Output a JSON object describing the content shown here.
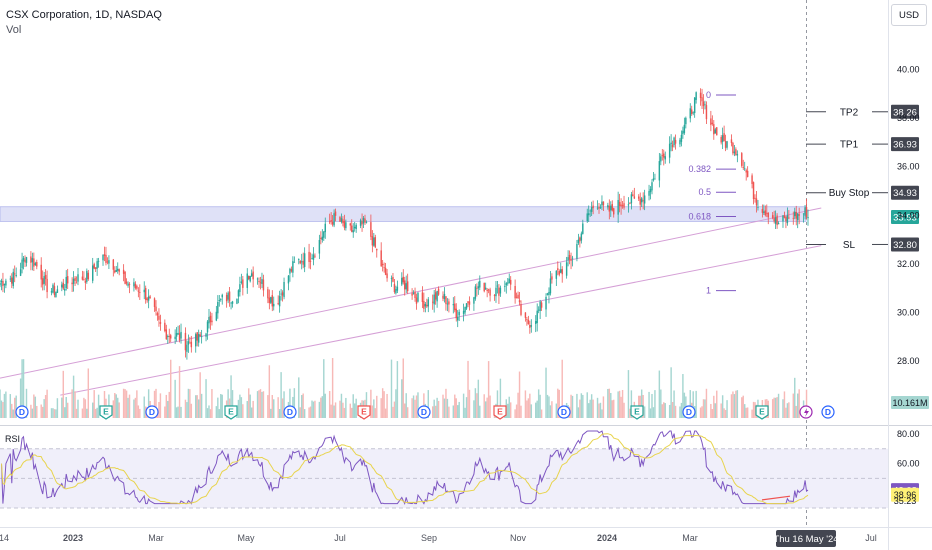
{
  "header": {
    "title": "CSX Corporation, 1D, NASDAQ",
    "volume_label": "Vol",
    "currency": "USD"
  },
  "colors": {
    "up": "#26a69a",
    "down": "#ef5350",
    "volUp": "#a5d6d1",
    "volDown": "#f7b9b7",
    "zone": "#c5c8f0",
    "fib": "#7e57c2",
    "rsi": "#7e57c2",
    "rsiMa": "#e8d44d",
    "trend": "#d59fd6"
  },
  "price_axis": {
    "ticks": [
      "40.00",
      "38.00",
      "36.00",
      "34.00",
      "32.00",
      "30.00",
      "28.00"
    ]
  },
  "price_levels": [
    {
      "label": "TP2",
      "value": "38.26"
    },
    {
      "label": "TP1",
      "value": "36.93"
    },
    {
      "label": "Buy Stop",
      "value": "34.93"
    },
    {
      "label": "SL",
      "value": "32.80"
    }
  ],
  "last_price": "33.93",
  "volume_badge": "10.161M",
  "fib_levels": [
    "0",
    "0.382",
    "0.5",
    "0.618",
    "1"
  ],
  "rsi": {
    "label": "RSI",
    "ticks": [
      "80.00",
      "60.00"
    ],
    "value": "42.08",
    "ma_value": "38.96",
    "min_value": "35.23"
  },
  "events": [
    {
      "kind": "D"
    },
    {
      "kind": "E"
    },
    {
      "kind": "D"
    },
    {
      "kind": "E"
    },
    {
      "kind": "D"
    },
    {
      "kind": "E"
    },
    {
      "kind": "D"
    },
    {
      "kind": "E"
    },
    {
      "kind": "D"
    },
    {
      "kind": "E"
    },
    {
      "kind": "D"
    },
    {
      "kind": "E"
    },
    {
      "kind": "flash"
    },
    {
      "kind": "D"
    }
  ],
  "x_axis": {
    "labels": [
      "14",
      "2023",
      "Mar",
      "May",
      "Jul",
      "Sep",
      "Nov",
      "2024",
      "Mar",
      "Jul"
    ],
    "current_date": "Thu 16 May '24"
  },
  "chart_data": {
    "type": "candlestick",
    "symbol": "CSX",
    "interval": "1D",
    "exchange": "NASDAQ",
    "price_range": [
      27.2,
      41.5
    ],
    "path_anchors": [
      [
        "2022-11-14",
        31.0
      ],
      [
        "2022-12-01",
        32.3
      ],
      [
        "2022-12-15",
        31.2
      ],
      [
        "2023-01-01",
        31.0
      ],
      [
        "2023-01-20",
        32.2
      ],
      [
        "2023-02-10",
        31.4
      ],
      [
        "2023-03-01",
        29.8
      ],
      [
        "2023-03-20",
        28.5
      ],
      [
        "2023-04-10",
        30.0
      ],
      [
        "2023-05-01",
        31.6
      ],
      [
        "2023-05-20",
        30.6
      ],
      [
        "2023-06-10",
        32.4
      ],
      [
        "2023-07-01",
        33.8
      ],
      [
        "2023-07-20",
        33.4
      ],
      [
        "2023-08-10",
        31.0
      ],
      [
        "2023-09-01",
        30.6
      ],
      [
        "2023-09-20",
        30.2
      ],
      [
        "2023-10-10",
        31.0
      ],
      [
        "2023-10-25",
        31.3
      ],
      [
        "2023-11-05",
        29.5
      ],
      [
        "2023-11-20",
        30.6
      ],
      [
        "2023-12-10",
        32.8
      ],
      [
        "2023-12-25",
        34.5
      ],
      [
        "2024-01-15",
        34.3
      ],
      [
        "2024-02-01",
        35.5
      ],
      [
        "2024-02-15",
        37.2
      ],
      [
        "2024-03-01",
        38.6
      ],
      [
        "2024-03-15",
        37.6
      ],
      [
        "2024-04-01",
        36.1
      ],
      [
        "2024-04-15",
        34.4
      ],
      [
        "2024-04-25",
        33.4
      ],
      [
        "2024-05-05",
        34.3
      ],
      [
        "2024-05-16",
        33.93
      ]
    ],
    "fibonacci": [
      {
        "level": "0",
        "price": 38.95
      },
      {
        "level": "0.382",
        "price": 35.9
      },
      {
        "level": "0.5",
        "price": 34.95
      },
      {
        "level": "0.618",
        "price": 33.95
      },
      {
        "level": "1",
        "price": 30.9
      }
    ],
    "zone": [
      33.75,
      34.35
    ],
    "trendlines": [
      {
        "from": [
          "2022-11-14",
          27.3
        ],
        "to": [
          "2024-05-25",
          34.3
        ]
      },
      {
        "from": [
          "2022-12-25",
          26.6
        ],
        "to": [
          "2024-05-25",
          32.75
        ]
      }
    ]
  }
}
